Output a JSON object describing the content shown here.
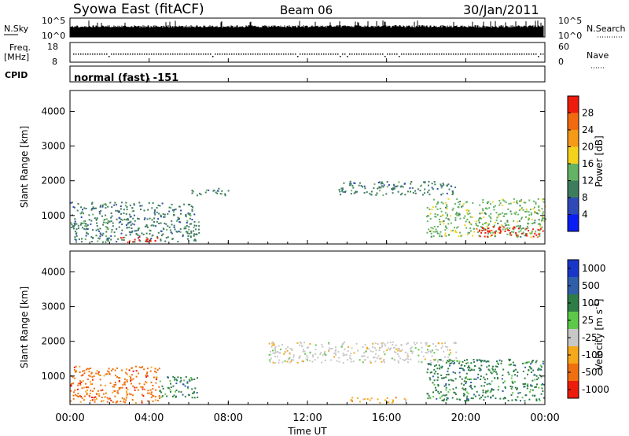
{
  "header": {
    "station": "Syowa East (fitACF)",
    "beam": "Beam 06",
    "date": "30/Jan/2011"
  },
  "strips": {
    "nsky_label": "N.Sky",
    "nsky_top_tick": "10^5",
    "nsky_bottom_tick": "10^0",
    "nsearch_label": "N.Search",
    "nsearch_top_tick": "10^5",
    "nsearch_bottom_tick": "10^0",
    "freq_label_1": "Freq.",
    "freq_label_2": "[MHz]",
    "freq_top_tick": "18",
    "freq_bottom_tick": "8",
    "nave_label": "Nave",
    "nave_top_tick": "60",
    "nave_bottom_tick": "0",
    "cpid_label": "CPID",
    "cpid_value": "normal (fast) -151"
  },
  "chart_data": [
    {
      "type": "heatmap",
      "name": "Power",
      "ylabel": "Slant Range [km]",
      "xlabel": "",
      "ylim": [
        180,
        4600
      ],
      "xlim_hours": [
        0,
        24
      ],
      "y_ticks": [
        "1000",
        "2000",
        "3000",
        "4000"
      ],
      "y_tick_values": [
        1000,
        2000,
        3000,
        4000
      ],
      "colorbar": {
        "label": "Power [dB]",
        "ticks": [
          "4",
          "8",
          "12",
          "16",
          "20",
          "24",
          "28"
        ],
        "colors": [
          "#0a1df2",
          "#2f49b6",
          "#3e7c5e",
          "#64b364",
          "#f4d21c",
          "#f49a17",
          "#f26a10",
          "#ee1c0c"
        ]
      },
      "echo_regions": [
        {
          "t_start": 0.0,
          "t_end": 6.5,
          "range_min": 250,
          "range_max": 1400,
          "dominant_power_db": 8
        },
        {
          "t_start": 2.5,
          "t_end": 4.5,
          "range_min": 250,
          "range_max": 400,
          "dominant_power_db": 28
        },
        {
          "t_start": 6.0,
          "t_end": 8.0,
          "range_min": 1600,
          "range_max": 1800,
          "dominant_power_db": 8
        },
        {
          "t_start": 13.5,
          "t_end": 19.5,
          "range_min": 1600,
          "range_max": 2000,
          "dominant_power_db": 8
        },
        {
          "t_start": 18.0,
          "t_end": 24.0,
          "range_min": 400,
          "range_max": 1500,
          "dominant_power_db": 12
        },
        {
          "t_start": 20.5,
          "t_end": 24.0,
          "range_min": 400,
          "range_max": 700,
          "dominant_power_db": 28
        }
      ]
    },
    {
      "type": "heatmap",
      "name": "Velocity",
      "ylabel": "Slant Range [km]",
      "xlabel": "Time UT",
      "ylim": [
        180,
        4600
      ],
      "xlim_hours": [
        0,
        24
      ],
      "x_ticks": [
        "00:00",
        "04:00",
        "08:00",
        "12:00",
        "16:00",
        "20:00",
        "00:00"
      ],
      "x_tick_values": [
        0,
        4,
        8,
        12,
        16,
        20,
        24
      ],
      "y_ticks": [
        "1000",
        "2000",
        "3000",
        "4000"
      ],
      "y_tick_values": [
        1000,
        2000,
        3000,
        4000
      ],
      "colorbar": {
        "label": "Velocity [m s^-1]",
        "ticks": [
          "1000",
          "500",
          "100",
          "25",
          "-25",
          "-100",
          "-500",
          "-1000"
        ],
        "colors": [
          "#1a36c8",
          "#2f5fa8",
          "#2e7d46",
          "#5ec84a",
          "#c8c8c8",
          "#f4a81a",
          "#f07010",
          "#ee1c0c"
        ]
      },
      "echo_regions": [
        {
          "t_start": 0.0,
          "t_end": 4.5,
          "range_min": 250,
          "range_max": 1300,
          "dominant_velocity": -100
        },
        {
          "t_start": 4.5,
          "t_end": 6.5,
          "range_min": 400,
          "range_max": 1000,
          "dominant_velocity": 100
        },
        {
          "t_start": 10.0,
          "t_end": 19.5,
          "range_min": 1400,
          "range_max": 2000,
          "dominant_velocity": 0
        },
        {
          "t_start": 14.0,
          "t_end": 17.0,
          "range_min": 250,
          "range_max": 400,
          "dominant_velocity": -25
        },
        {
          "t_start": 18.0,
          "t_end": 24.0,
          "range_min": 300,
          "range_max": 1500,
          "dominant_velocity": 100
        }
      ]
    }
  ]
}
